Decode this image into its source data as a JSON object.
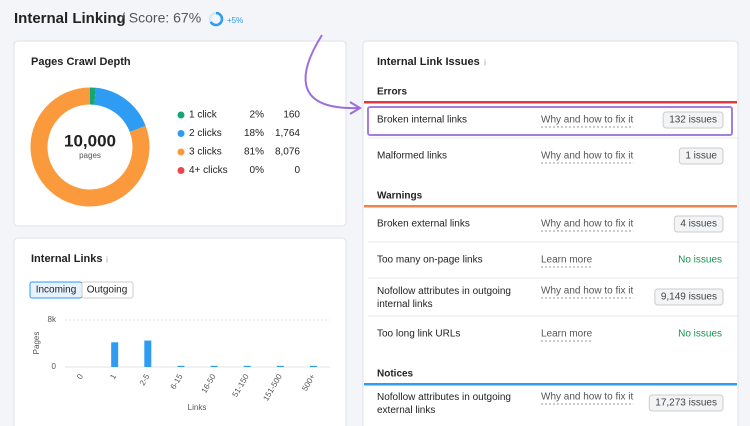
{
  "header": {
    "title": "Internal Linking",
    "score_text": "/ Score: 67%",
    "score": 67,
    "change": "+5%"
  },
  "crawl_depth": {
    "title": "Pages Crawl Depth",
    "total": 10000,
    "total_label": "10,000",
    "unit": "pages",
    "legend": [
      {
        "name": "1 click",
        "color": "#17a673",
        "percent": 2,
        "percent_label": "2%",
        "pages": 160,
        "pages_label": "160"
      },
      {
        "name": "2 clicks",
        "color": "#2d9cf2",
        "percent": 18,
        "percent_label": "18%",
        "pages": 1764,
        "pages_label": "1,764"
      },
      {
        "name": "3 clicks",
        "color": "#fb9a3c",
        "percent": 81,
        "percent_label": "81%",
        "pages": 8076,
        "pages_label": "8,076"
      },
      {
        "name": "4+ clicks",
        "color": "#f0434c",
        "percent": 0,
        "percent_label": "0%",
        "pages": 0,
        "pages_label": "0"
      }
    ]
  },
  "internal_links": {
    "title": "Internal Links",
    "tabs": [
      "Incoming",
      "Outgoing"
    ],
    "chart_data": {
      "type": "bar",
      "categories": [
        "0",
        "1",
        "2-5",
        "6-15",
        "16-50",
        "51-150",
        "151-500",
        "500+"
      ],
      "values": [
        0,
        4200,
        4500,
        200,
        200,
        200,
        200,
        200
      ],
      "color": "#2d9cf2",
      "ylim": [
        0,
        8000
      ],
      "yticks": [
        0,
        {
          "value": 8000,
          "label": "8k"
        }
      ],
      "y_label": "Pages",
      "x_label": "Links"
    }
  },
  "issues": {
    "title": "Internal Link Issues",
    "groups": [
      {
        "name": "Errors",
        "color": "#e0393e",
        "rows": [
          {
            "label": "Broken internal links",
            "link": "Why and how to fix it",
            "status": "132 issues",
            "boxed": true
          },
          {
            "label": "Malformed links",
            "link": "Why and how to fix it",
            "status": "1 issue",
            "boxed": true
          }
        ]
      },
      {
        "name": "Warnings",
        "color": "#f5824a",
        "rows": [
          {
            "label": "Broken external links",
            "link": "Why and how to fix it",
            "status": "4 issues",
            "boxed": true
          },
          {
            "label": "Too many on-page links",
            "link": "Learn more",
            "status": "No issues",
            "boxed": false
          },
          {
            "label": "Nofollow attributes in outgoing internal links",
            "link": "Why and how to fix it",
            "status": "9,149 issues",
            "boxed": true
          },
          {
            "label": "Too long link URLs",
            "link": "Learn more",
            "status": "No issues",
            "boxed": false
          }
        ]
      },
      {
        "name": "Notices",
        "color": "#2d9cf2",
        "rows": [
          {
            "label": "Nofollow attributes in outgoing external links",
            "link": "Why and how to fix it",
            "status": "17,273 issues",
            "boxed": true
          }
        ]
      }
    ]
  }
}
